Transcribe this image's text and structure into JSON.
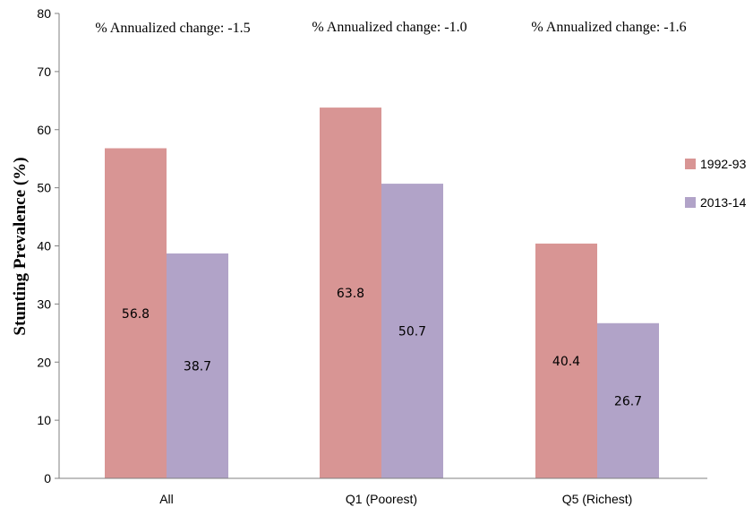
{
  "chart_data": {
    "type": "bar",
    "categories": [
      "All",
      "Q1 (Poorest)",
      "Q5 (Richest)"
    ],
    "series": [
      {
        "name": "1992-93",
        "values": [
          56.8,
          63.8,
          40.4
        ],
        "color": "#d89594"
      },
      {
        "name": "2013-14",
        "values": [
          38.7,
          50.7,
          26.7
        ],
        "color": "#b1a3c8"
      }
    ],
    "data_labels": [
      [
        "56.8",
        "63.8",
        "40.4"
      ],
      [
        "38.7",
        "50.7",
        "26.7"
      ]
    ],
    "annotations": [
      "% Annualized change: -1.5",
      "% Annualized change: -1.0",
      "% Annualized change: -1.6"
    ],
    "ylabel": "Stunting Prevalence (%)",
    "xlabel": "",
    "ylim": [
      0,
      80
    ],
    "yticks": [
      0,
      10,
      20,
      30,
      40,
      50,
      60,
      70,
      80
    ],
    "grid": false,
    "legend_position": "right"
  }
}
